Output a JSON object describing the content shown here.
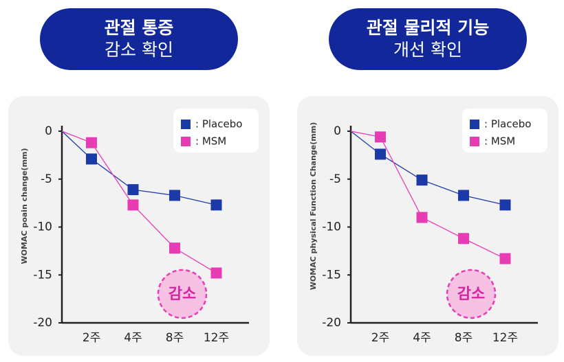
{
  "chart_data": [
    {
      "type": "line",
      "title": "관절 통증",
      "subtitle": "감소 확인",
      "y_label": "WOMAC poain change(mm)",
      "categories": [
        null,
        "2주",
        "4주",
        "8주",
        "12주"
      ],
      "series": [
        {
          "name": ": Placebo",
          "color": "#1b3aa8",
          "values": [
            0,
            -2.9,
            -6.1,
            -6.7,
            -7.7
          ]
        },
        {
          "name": ": MSM",
          "color": "#e83cb5",
          "values": [
            0,
            -1.2,
            -7.7,
            -12.2,
            -14.8
          ]
        }
      ],
      "ylim": [
        -20,
        0
      ],
      "yticks": [
        0,
        -5,
        -10,
        -15,
        -20
      ],
      "annotation": "감소"
    },
    {
      "type": "line",
      "title": "관절 물리적 기능",
      "subtitle": "개선 확인",
      "y_label": "WOMAC physical Function Change(mm)",
      "categories": [
        null,
        "2주",
        "4주",
        "8주",
        "12주"
      ],
      "series": [
        {
          "name": ": Placebo",
          "color": "#1b3aa8",
          "values": [
            0,
            -2.4,
            -5.1,
            -6.7,
            -7.7
          ]
        },
        {
          "name": ": MSM",
          "color": "#e83cb5",
          "values": [
            0,
            -0.6,
            -9.0,
            -11.2,
            -13.3
          ]
        }
      ],
      "ylim": [
        -20,
        0
      ],
      "yticks": [
        0,
        -5,
        -10,
        -15,
        -20
      ],
      "annotation": "감소"
    }
  ]
}
